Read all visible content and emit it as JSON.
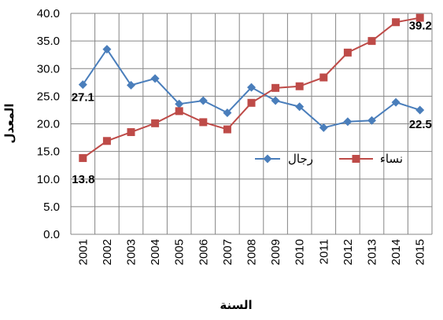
{
  "chart_data": {
    "type": "line",
    "xlabel": "السنة",
    "ylabel": "المعدل",
    "ylim": [
      0,
      40
    ],
    "ytick_step": 5,
    "yticks": [
      "0.0",
      "5.0",
      "10.0",
      "15.0",
      "20.0",
      "25.0",
      "30.0",
      "35.0",
      "40.0"
    ],
    "categories": [
      "2001",
      "2002",
      "2003",
      "2004",
      "2005",
      "2006",
      "2007",
      "2008",
      "2009",
      "2010",
      "2011",
      "2012",
      "2013",
      "2014",
      "2015"
    ],
    "grid": true,
    "legend_position": "center-right",
    "series": [
      {
        "name": "رجال",
        "color": "#4A7EBB",
        "marker": "diamond",
        "values": [
          27.1,
          33.5,
          27.0,
          28.2,
          23.6,
          24.2,
          22.0,
          26.6,
          24.2,
          23.1,
          19.3,
          20.4,
          20.6,
          23.9,
          22.5
        ]
      },
      {
        "name": "نساء",
        "color": "#BE4B48",
        "marker": "square",
        "values": [
          13.8,
          16.9,
          18.5,
          20.1,
          22.3,
          20.3,
          19.0,
          23.8,
          26.5,
          26.8,
          28.4,
          32.9,
          35.0,
          38.4,
          39.2
        ]
      }
    ],
    "annotations": [
      {
        "text": "27.1",
        "series": 0,
        "index": 0
      },
      {
        "text": "13.8",
        "series": 1,
        "index": 0
      },
      {
        "text": "39.2",
        "series": 1,
        "index": 14
      },
      {
        "text": "22.5",
        "series": 0,
        "index": 14
      }
    ]
  }
}
